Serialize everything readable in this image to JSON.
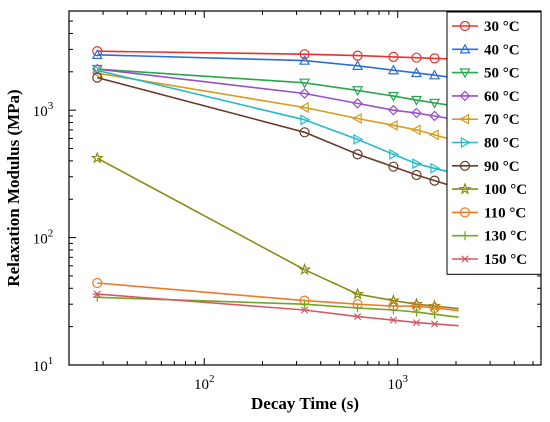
{
  "chart_data": {
    "type": "line",
    "xlabel": "Decay Time (s)",
    "ylabel": "Relaxation Modulus (MPa)",
    "xscale": "log",
    "yscale": "log",
    "xlim": [
      20,
      5500
    ],
    "ylim": [
      10,
      6000
    ],
    "x_ticks": [
      {
        "value": 100,
        "base": "10",
        "exp": "2"
      },
      {
        "value": 1000,
        "base": "10",
        "exp": "3"
      }
    ],
    "y_ticks": [
      {
        "value": 10,
        "base": "10",
        "exp": "1"
      },
      {
        "value": 100,
        "base": "10",
        "exp": "2"
      },
      {
        "value": 1000,
        "base": "10",
        "exp": "3"
      }
    ],
    "grid": false,
    "legend_position": "top-right",
    "series": [
      {
        "name": "30 °C",
        "color": "#e8322e",
        "marker": "circle",
        "x": [
          28,
          330,
          620,
          950,
          1250,
          1550
        ],
        "y": [
          2900,
          2750,
          2680,
          2620,
          2580,
          2550
        ]
      },
      {
        "name": "40 °C",
        "color": "#2b6fd6",
        "marker": "triangle-up",
        "x": [
          28,
          330,
          620,
          950,
          1250,
          1550
        ],
        "y": [
          2720,
          2450,
          2230,
          2060,
          1960,
          1880
        ]
      },
      {
        "name": "50 °C",
        "color": "#2aa64c",
        "marker": "triangle-down",
        "x": [
          28,
          330,
          620,
          950,
          1250,
          1550
        ],
        "y": [
          2100,
          1640,
          1430,
          1290,
          1200,
          1140
        ]
      },
      {
        "name": "60 °C",
        "color": "#9b4fc6",
        "marker": "diamond",
        "x": [
          28,
          330,
          620,
          950,
          1250,
          1550
        ],
        "y": [
          2100,
          1350,
          1130,
          1000,
          950,
          900
        ]
      },
      {
        "name": "70 °C",
        "color": "#d99a1e",
        "marker": "triangle-left",
        "x": [
          28,
          330,
          620,
          950,
          1250,
          1550
        ],
        "y": [
          1950,
          1050,
          860,
          760,
          700,
          640
        ]
      },
      {
        "name": "80 °C",
        "color": "#23bccd",
        "marker": "triangle-right",
        "x": [
          28,
          330,
          620,
          950,
          1250,
          1550
        ],
        "y": [
          2050,
          840,
          590,
          450,
          380,
          350
        ]
      },
      {
        "name": "90 °C",
        "color": "#6b3a2a",
        "marker": "circle",
        "x": [
          28,
          330,
          620,
          950,
          1250,
          1550
        ],
        "y": [
          1800,
          670,
          450,
          360,
          310,
          280
        ]
      },
      {
        "name": "100 °C",
        "color": "#8b8a12",
        "marker": "star",
        "x": [
          28,
          330,
          620,
          950,
          1250,
          1550
        ],
        "y": [
          420,
          56,
          36,
          32,
          30,
          29
        ]
      },
      {
        "name": "110 °C",
        "color": "#ee7a2a",
        "marker": "circle",
        "x": [
          28,
          330,
          620,
          950,
          1250,
          1550
        ],
        "y": [
          44,
          32,
          30,
          29,
          29,
          28
        ]
      },
      {
        "name": "130 °C",
        "color": "#6da81e",
        "marker": "plus",
        "x": [
          28,
          330,
          620,
          950,
          1250,
          1550
        ],
        "y": [
          34,
          30,
          28,
          27,
          26,
          25
        ]
      },
      {
        "name": "150 °C",
        "color": "#d65a64",
        "marker": "asterisk",
        "x": [
          28,
          330,
          620,
          950,
          1250,
          1550
        ],
        "y": [
          36,
          27,
          24,
          22.5,
          21.5,
          21
        ]
      }
    ]
  }
}
